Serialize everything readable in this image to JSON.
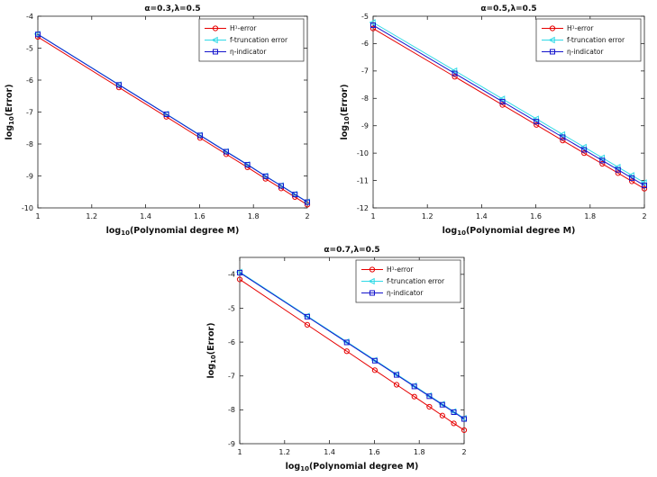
{
  "figure": {
    "background": "#ffffff",
    "axis_color": "#222222"
  },
  "chart_data": [
    {
      "type": "line",
      "title": "α=0.3,λ=0.5",
      "xlabel": {
        "pre": "log",
        "sub": "10",
        "post": "(Polynomial degree M)"
      },
      "ylabel": {
        "pre": "log",
        "sub": "10",
        "post": "(Error)"
      },
      "xlim": [
        1,
        2
      ],
      "ylim": [
        -10,
        -4
      ],
      "xticks": [
        1,
        1.2,
        1.4,
        1.6,
        1.8,
        2
      ],
      "yticks": [
        -4,
        -5,
        -6,
        -7,
        -8,
        -9,
        -10
      ],
      "grid": false,
      "legend_position": "top-right",
      "x": [
        1,
        1.301,
        1.477,
        1.602,
        1.699,
        1.778,
        1.845,
        1.903,
        1.954,
        2
      ],
      "series": [
        {
          "name": "H¹-error",
          "color": "#e60000",
          "marker": "circle",
          "values": [
            -4.65,
            -6.23,
            -7.15,
            -7.81,
            -8.32,
            -8.73,
            -9.09,
            -9.39,
            -9.66,
            -9.9
          ]
        },
        {
          "name": "f-truncation error",
          "color": "#2fd9e6",
          "marker": "triangle-left",
          "values": [
            -4.56,
            -6.14,
            -7.06,
            -7.72,
            -8.23,
            -8.64,
            -9.0,
            -9.3,
            -9.57,
            -9.81
          ]
        },
        {
          "name": "η-indicator",
          "color": "#1515cc",
          "marker": "square",
          "values": [
            -4.57,
            -6.15,
            -7.07,
            -7.73,
            -8.24,
            -8.65,
            -9.01,
            -9.31,
            -9.58,
            -9.82
          ]
        }
      ]
    },
    {
      "type": "line",
      "title": "α=0.5,λ=0.5",
      "xlabel": {
        "pre": "log",
        "sub": "10",
        "post": "(Polynomial degree M)"
      },
      "ylabel": {
        "pre": "log",
        "sub": "10",
        "post": "(Error)"
      },
      "xlim": [
        1,
        2
      ],
      "ylim": [
        -12,
        -5
      ],
      "xticks": [
        1,
        1.2,
        1.4,
        1.6,
        1.8,
        2
      ],
      "yticks": [
        -5,
        -6,
        -7,
        -8,
        -9,
        -10,
        -11,
        -12
      ],
      "grid": false,
      "legend_position": "top-right",
      "x": [
        1,
        1.301,
        1.477,
        1.602,
        1.699,
        1.778,
        1.845,
        1.903,
        1.954,
        2
      ],
      "series": [
        {
          "name": "H¹-error",
          "color": "#e60000",
          "marker": "circle",
          "values": [
            -5.45,
            -7.21,
            -8.24,
            -8.97,
            -9.54,
            -10.0,
            -10.39,
            -10.73,
            -11.03,
            -11.3
          ]
        },
        {
          "name": "f-truncation error",
          "color": "#2fd9e6",
          "marker": "triangle-left",
          "values": [
            -5.23,
            -6.99,
            -8.02,
            -8.75,
            -9.32,
            -9.78,
            -10.17,
            -10.51,
            -10.81,
            -11.08
          ]
        },
        {
          "name": "η-indicator",
          "color": "#1515cc",
          "marker": "square",
          "values": [
            -5.33,
            -7.09,
            -8.12,
            -8.85,
            -9.42,
            -9.88,
            -10.27,
            -10.61,
            -10.91,
            -11.18
          ]
        }
      ]
    },
    {
      "type": "line",
      "title": "α=0.7,λ=0.5",
      "xlabel": {
        "pre": "log",
        "sub": "10",
        "post": "(Polynomial degree M)"
      },
      "ylabel": {
        "pre": "log",
        "sub": "10",
        "post": "(Error)"
      },
      "xlim": [
        1,
        2
      ],
      "ylim": [
        -9,
        -3.5
      ],
      "xticks": [
        1,
        1.2,
        1.4,
        1.6,
        1.8,
        2
      ],
      "yticks": [
        -4,
        -5,
        -6,
        -7,
        -8,
        -9
      ],
      "grid": false,
      "legend_position": "top-right",
      "x": [
        1,
        1.301,
        1.477,
        1.602,
        1.699,
        1.778,
        1.845,
        1.903,
        1.954,
        2
      ],
      "series": [
        {
          "name": "H¹-error",
          "color": "#e60000",
          "marker": "circle",
          "values": [
            -4.15,
            -5.49,
            -6.27,
            -6.83,
            -7.26,
            -7.61,
            -7.91,
            -8.17,
            -8.4,
            -8.6
          ]
        },
        {
          "name": "f-truncation error",
          "color": "#2fd9e6",
          "marker": "triangle-left",
          "values": [
            -3.93,
            -5.23,
            -5.99,
            -6.53,
            -6.95,
            -7.29,
            -7.58,
            -7.83,
            -8.05,
            -8.25
          ]
        },
        {
          "name": "η-indicator",
          "color": "#1515cc",
          "marker": "square",
          "values": [
            -3.95,
            -5.25,
            -6.01,
            -6.55,
            -6.97,
            -7.31,
            -7.6,
            -7.85,
            -8.07,
            -8.27
          ]
        }
      ]
    }
  ]
}
